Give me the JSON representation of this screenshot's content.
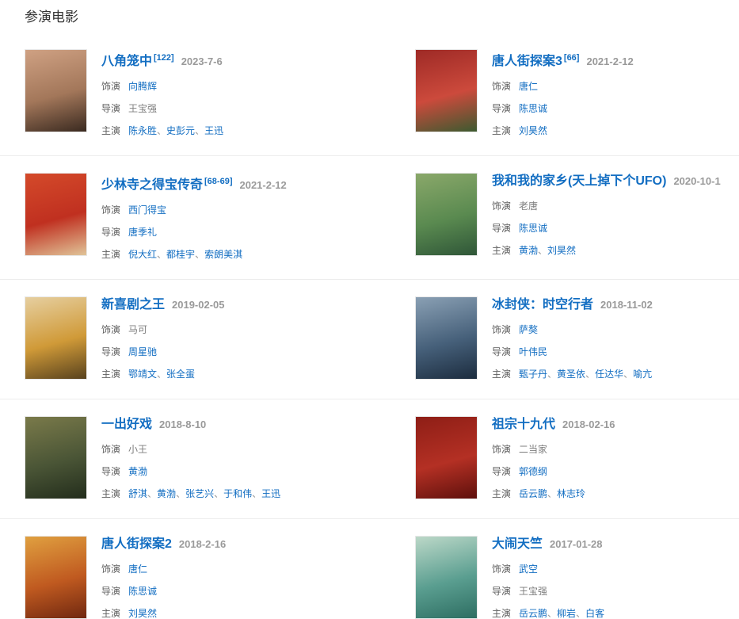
{
  "section": {
    "title": "参演电影"
  },
  "labels": {
    "role": "饰演",
    "director": "导演",
    "cast": "主演",
    "name_separator": "、"
  },
  "colors": {
    "link_blue": "#136ec2",
    "label_gray": "#5f5f5f",
    "plain_gray": "#7d7d7d",
    "date_gray": "#9a9a9a",
    "separator_gray": "#9a9a9a",
    "divider": "#ececec"
  },
  "movies": [
    {
      "title": "八角笼中",
      "ref": "[122]",
      "date": "2023-7-6",
      "role": {
        "text": "向腾辉",
        "link": true
      },
      "director": {
        "text": "王宝强",
        "link": false
      },
      "cast": [
        "陈永胜",
        "史彭元",
        "王迅"
      ],
      "poster_colors": [
        "#cfa183",
        "#a3775a",
        "#3a2a20"
      ]
    },
    {
      "title": "唐人街探案3",
      "ref": "[66]",
      "date": "2021-2-12",
      "role": {
        "text": "唐仁",
        "link": true
      },
      "director": {
        "text": "陈思诚",
        "link": true
      },
      "cast": [
        "刘昊然"
      ],
      "poster_colors": [
        "#9e2a26",
        "#cc4a3c",
        "#3c5a30"
      ]
    },
    {
      "title": "少林寺之得宝传奇",
      "ref": "[68-69]",
      "date": "2021-2-12",
      "role": {
        "text": "西门得宝",
        "link": true
      },
      "director": {
        "text": "唐季礼",
        "link": true
      },
      "cast": [
        "倪大红",
        "都桂宇",
        "索朗美淇"
      ],
      "poster_colors": [
        "#d44a2a",
        "#c03020",
        "#e0c498"
      ]
    },
    {
      "title": "我和我的家乡(天上掉下个UFO)",
      "ref": "",
      "date": "2020-10-1",
      "role": {
        "text": "老唐",
        "link": false
      },
      "director": {
        "text": "陈思诚",
        "link": true
      },
      "cast": [
        "黄渤",
        "刘昊然"
      ],
      "poster_colors": [
        "#8aa86a",
        "#5a8a50",
        "#2f5638"
      ]
    },
    {
      "title": "新喜剧之王",
      "ref": "",
      "date": "2019-02-05",
      "role": {
        "text": "马可",
        "link": false
      },
      "director": {
        "text": "周星驰",
        "link": true
      },
      "cast": [
        "鄂靖文",
        "张全蛋"
      ],
      "poster_colors": [
        "#e6cfa0",
        "#d09a38",
        "#58421e"
      ]
    },
    {
      "title": "冰封侠：时空行者",
      "ref": "",
      "date": "2018-11-02",
      "role": {
        "text": "萨獒",
        "link": true
      },
      "director": {
        "text": "叶伟民",
        "link": true
      },
      "cast": [
        "甄子丹",
        "黄圣依",
        "任达华",
        "喻亢"
      ],
      "poster_colors": [
        "#8aa0b4",
        "#46607a",
        "#1c2c3e"
      ]
    },
    {
      "title": "一出好戏",
      "ref": "",
      "date": "2018-8-10",
      "role": {
        "text": "小王",
        "link": false
      },
      "director": {
        "text": "黄渤",
        "link": true
      },
      "cast": [
        "舒淇",
        "黄渤",
        "张艺兴",
        "于和伟",
        "王迅"
      ],
      "poster_colors": [
        "#7a7a4a",
        "#4a5536",
        "#232d1c"
      ]
    },
    {
      "title": "祖宗十九代",
      "ref": "",
      "date": "2018-02-16",
      "role": {
        "text": "二当家",
        "link": false
      },
      "director": {
        "text": "郭德纲",
        "link": true
      },
      "cast": [
        "岳云鹏",
        "林志玲"
      ],
      "poster_colors": [
        "#8e1e16",
        "#b43024",
        "#5e100c"
      ]
    },
    {
      "title": "唐人街探案2",
      "ref": "",
      "date": "2018-2-16",
      "role": {
        "text": "唐仁",
        "link": true
      },
      "director": {
        "text": "陈思诚",
        "link": true
      },
      "cast": [
        "刘昊然"
      ],
      "poster_colors": [
        "#e0a040",
        "#c05a20",
        "#702810"
      ]
    },
    {
      "title": "大闹天竺",
      "ref": "",
      "date": "2017-01-28",
      "role": {
        "text": "武空",
        "link": true
      },
      "director": {
        "text": "王宝强",
        "link": false
      },
      "cast": [
        "岳云鹏",
        "柳岩",
        "白客"
      ],
      "poster_colors": [
        "#bcd8c8",
        "#5a9e90",
        "#2e6e62"
      ]
    }
  ]
}
